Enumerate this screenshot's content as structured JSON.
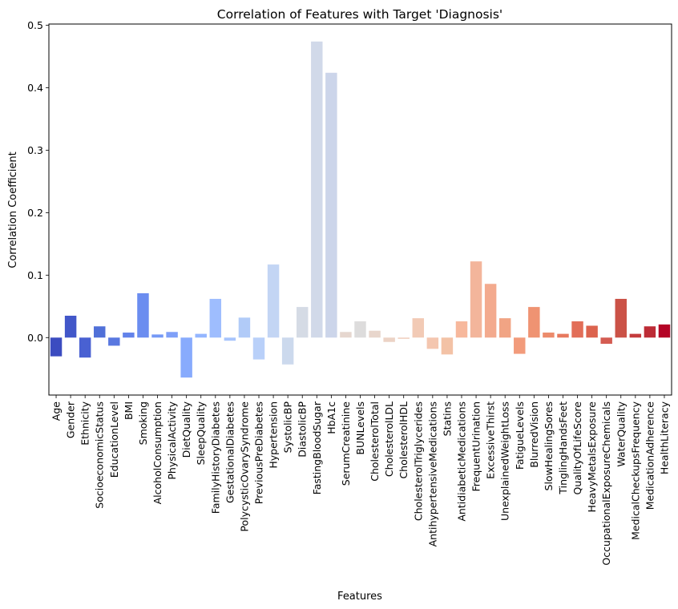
{
  "chart_data": {
    "type": "bar",
    "title": "Correlation of Features with Target 'Diagnosis'",
    "xlabel": "Features",
    "ylabel": "Correlation Coefficient",
    "ylim": [
      -0.092,
      0.502
    ],
    "yticks": [
      0.0,
      0.1,
      0.2,
      0.3,
      0.4,
      0.5
    ],
    "ytick_labels": [
      "0.0",
      "0.1",
      "0.2",
      "0.3",
      "0.4",
      "0.5"
    ],
    "palette": "coolwarm",
    "grid": false,
    "legend": "none",
    "categories": [
      "Age",
      "Gender",
      "Ethnicity",
      "SocioeconomicStatus",
      "EducationLevel",
      "BMI",
      "Smoking",
      "AlcoholConsumption",
      "PhysicalActivity",
      "DietQuality",
      "SleepQuality",
      "FamilyHistoryDiabetes",
      "GestationalDiabetes",
      "PolycysticOvarySyndrome",
      "PreviousPreDiabetes",
      "Hypertension",
      "SystolicBP",
      "DiastolicBP",
      "FastingBloodSugar",
      "HbA1c",
      "SerumCreatinine",
      "BUNLevels",
      "CholesterolTotal",
      "CholesterolLDL",
      "CholesterolHDL",
      "CholesterolTriglycerides",
      "AntihypertensiveMedications",
      "Statins",
      "AntidiabeticMedications",
      "FrequentUrination",
      "ExcessiveThirst",
      "UnexplainedWeightLoss",
      "FatigueLevels",
      "BlurredVision",
      "SlowHealingSores",
      "TinglingHandsFeet",
      "QualityOfLifeScore",
      "HeavyMetalsExposure",
      "OccupationalExposureChemicals",
      "WaterQuality",
      "MedicalCheckupsFrequency",
      "MedicationAdherence",
      "HealthLiteracy"
    ],
    "values": [
      -0.03,
      0.035,
      -0.032,
      0.018,
      -0.013,
      0.008,
      0.071,
      0.005,
      0.009,
      -0.064,
      0.006,
      0.062,
      -0.005,
      0.032,
      -0.035,
      0.117,
      -0.043,
      0.049,
      0.474,
      0.424,
      0.009,
      0.026,
      0.011,
      -0.007,
      -0.002,
      0.031,
      -0.018,
      -0.027,
      0.026,
      0.122,
      0.086,
      0.031,
      -0.026,
      0.049,
      0.008,
      0.006,
      0.026,
      0.019,
      -0.01,
      0.062,
      0.006,
      0.018,
      0.021
    ],
    "colors": [
      "#3b4cc0",
      "#4257c9",
      "#4961d2",
      "#5070d8",
      "#5978e0",
      "#6282ea",
      "#6b8df0",
      "#7599f6",
      "#7fa0f8",
      "#88abfd",
      "#94b6ff",
      "#9ebdfe",
      "#a7c4fc",
      "#b1cbf8",
      "#b9d0f9",
      "#c3d5f4",
      "#ccd9ed",
      "#d5dbe5",
      "#d1d9e9",
      "#ccd5ea",
      "#e6d7cf",
      "#dddcdc",
      "#e8d6cc",
      "#ecd3c5",
      "#efcfbf",
      "#f2cab5",
      "#f4c6af",
      "#f3c2a6",
      "#f7b89c",
      "#f3b59b",
      "#f3aa8e",
      "#f1a484",
      "#f29b7b",
      "#ef9372",
      "#ec8b6b",
      "#e7795e",
      "#e26e58",
      "#dc634e",
      "#d45c52",
      "#cb5247",
      "#c43b3c",
      "#bd2c36",
      "#b40426"
    ]
  }
}
